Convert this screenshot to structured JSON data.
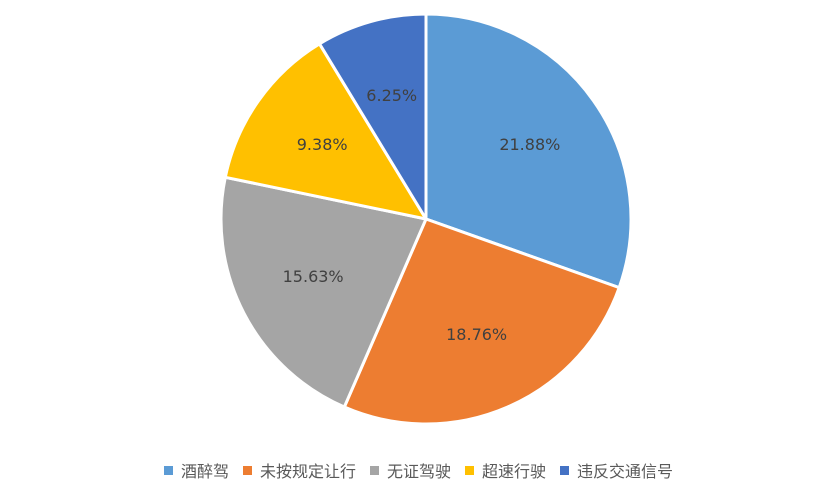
{
  "chart_data": {
    "type": "pie",
    "legend_position": "bottom",
    "slices": [
      {
        "name": "酒醉驾",
        "value": 21.88,
        "label": "21.88%",
        "color": "#5B9BD5"
      },
      {
        "name": "未按规定让行",
        "value": 18.76,
        "label": "18.76%",
        "color": "#ED7D31"
      },
      {
        "name": "无证驾驶",
        "value": 15.63,
        "label": "15.63%",
        "color": "#A5A5A5"
      },
      {
        "name": "超速行驶",
        "value": 9.38,
        "label": "9.38%",
        "color": "#FFC000"
      },
      {
        "name": "违反交通信号",
        "value": 6.25,
        "label": "6.25%",
        "color": "#4472C4"
      }
    ]
  }
}
